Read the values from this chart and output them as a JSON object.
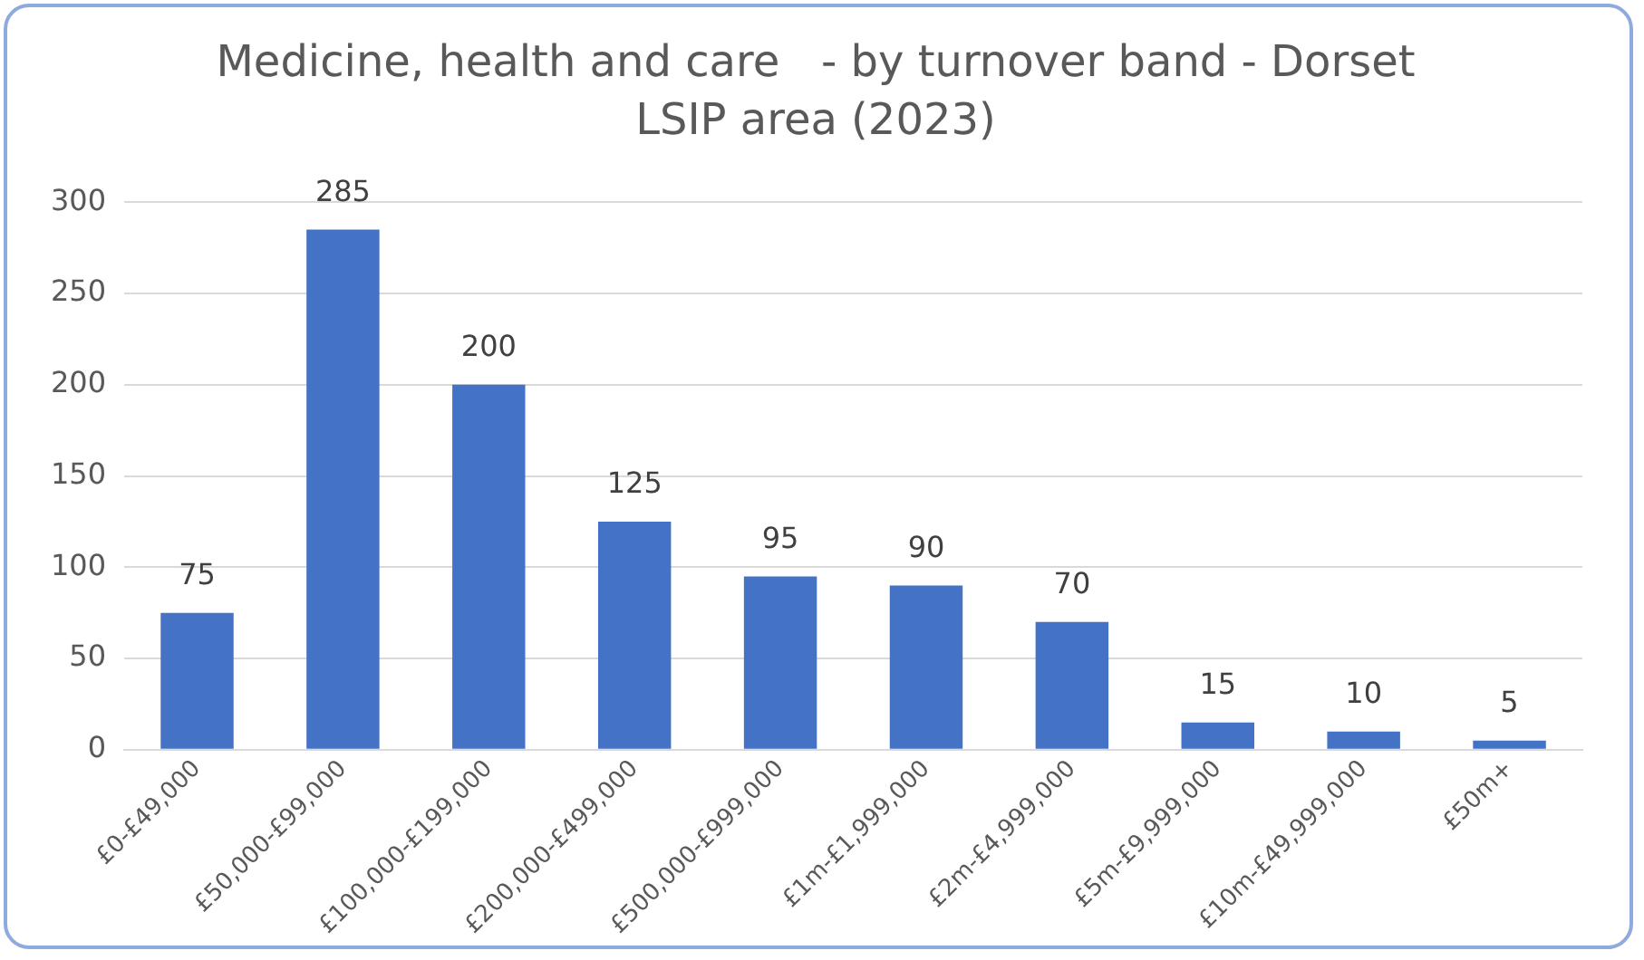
{
  "chart_data": {
    "type": "bar",
    "title": "Medicine, health and care   - by turnover band - Dorset LSIP area (2023)",
    "categories": [
      "£0-£49,000",
      "£50,000-£99,000",
      "£100,000-£199,000",
      "£200,000-£499,000",
      "£500,000-£999,000",
      "£1m-£1,999,000",
      "£2m-£4,999,000",
      "£5m-£9,999,000",
      "£10m-£49,999,000",
      "£50m+"
    ],
    "values": [
      75,
      285,
      200,
      125,
      95,
      90,
      70,
      15,
      10,
      5
    ],
    "color": "#4472c4",
    "ylim": [
      0,
      300
    ],
    "yticks": [
      0,
      50,
      100,
      150,
      200,
      250,
      300
    ],
    "grid": "y",
    "data_labels": true,
    "legend": false
  }
}
